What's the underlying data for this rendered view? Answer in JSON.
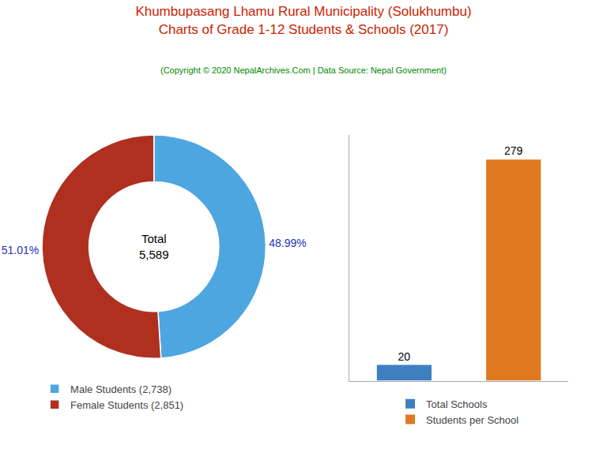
{
  "chart_data": [
    {
      "type": "pie",
      "title": "Khumbupasang Lhamu Rural Municipality (Solukhumbu)\nCharts of Grade 1-12 Students & Schools (2017)",
      "subtitle": "(Copyright © 2020 NepalArchives.Com | Data Source: Nepal Government)",
      "categories": [
        "Male Students (2,738)",
        "Female Students (2,851)"
      ],
      "values": [
        48.99,
        51.01
      ],
      "value_labels": [
        "48.99%",
        "51.01%"
      ],
      "colors": [
        "#4da6e0",
        "#b03020"
      ],
      "data_labels": true,
      "annotations": [
        "Total",
        "5,589"
      ],
      "legend": "bottom"
    },
    {
      "type": "bar",
      "categories": [
        "Total Schools",
        "Students per School"
      ],
      "values": [
        20,
        279
      ],
      "colors": [
        "#3d7fc1",
        "#e07820"
      ],
      "data_labels": true,
      "ylim": [
        0,
        310
      ],
      "yticks": [],
      "tick_labels": false,
      "grid": false,
      "legend": "bottom"
    }
  ]
}
